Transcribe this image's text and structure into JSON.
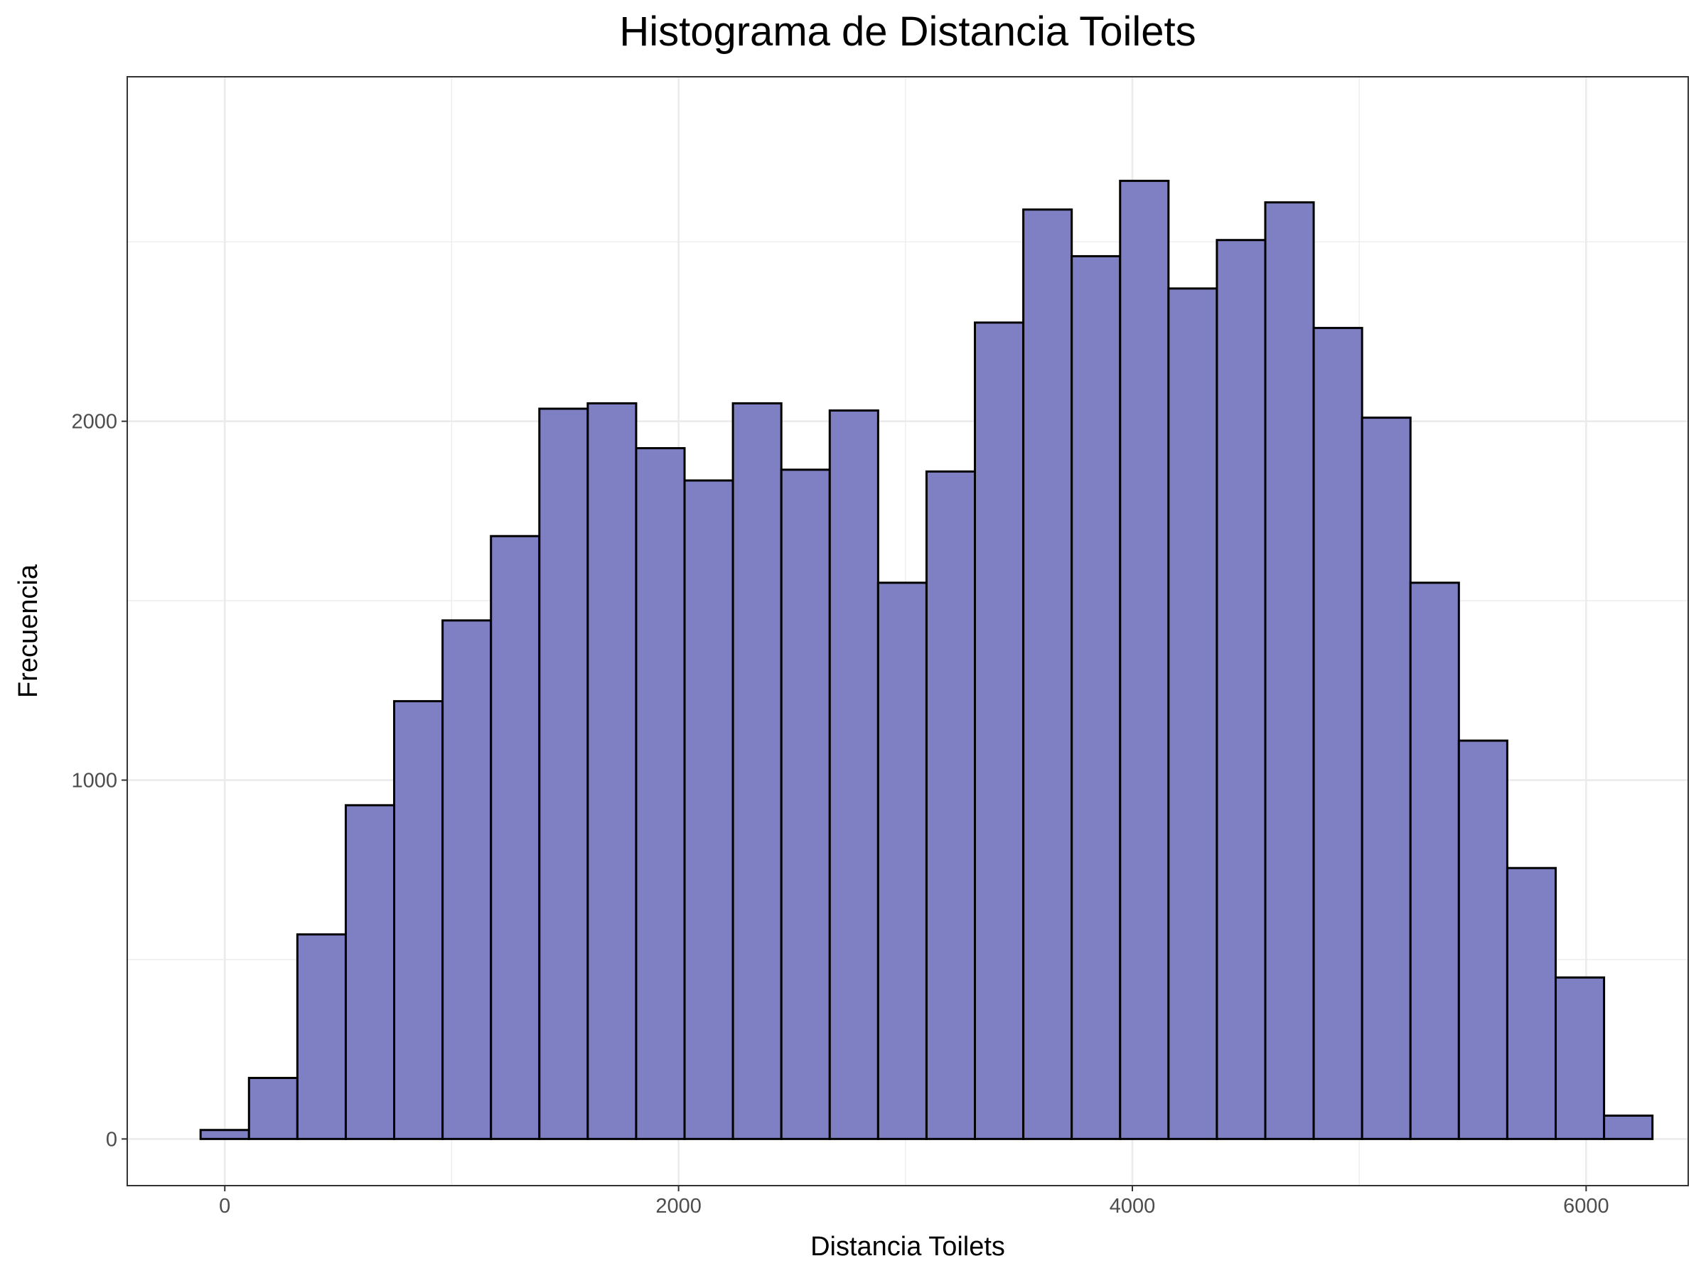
{
  "chart_data": {
    "type": "bar",
    "subtype": "histogram",
    "title": "Histograma de Distancia Toilets",
    "xlabel": "Distancia Toilets",
    "ylabel": "Frecuencia",
    "xlim": [
      -430,
      6450
    ],
    "ylim": [
      -130,
      2960
    ],
    "x_ticks": [
      0,
      2000,
      4000,
      6000
    ],
    "y_ticks": [
      0,
      1000,
      2000
    ],
    "grid": true,
    "legend": "none",
    "fill_color": "#7f7fc4",
    "border_color": "#000000",
    "bin_width": 213.3,
    "bin_start": -106.7,
    "bins": [
      {
        "x0": -106.7,
        "x1": 106.6,
        "count": 25
      },
      {
        "x0": 106.6,
        "x1": 319.9,
        "count": 170
      },
      {
        "x0": 319.9,
        "x1": 533.2,
        "count": 570
      },
      {
        "x0": 533.2,
        "x1": 746.5,
        "count": 930
      },
      {
        "x0": 746.5,
        "x1": 959.8,
        "count": 1220
      },
      {
        "x0": 959.8,
        "x1": 1173.1,
        "count": 1445
      },
      {
        "x0": 1173.1,
        "x1": 1386.4,
        "count": 1680
      },
      {
        "x0": 1386.4,
        "x1": 1599.7,
        "count": 2035
      },
      {
        "x0": 1599.7,
        "x1": 1813.0,
        "count": 2050
      },
      {
        "x0": 1813.0,
        "x1": 2026.3,
        "count": 1925
      },
      {
        "x0": 2026.3,
        "x1": 2239.6,
        "count": 1835
      },
      {
        "x0": 2239.6,
        "x1": 2452.9,
        "count": 2050
      },
      {
        "x0": 2452.9,
        "x1": 2666.2,
        "count": 1865
      },
      {
        "x0": 2666.2,
        "x1": 2879.5,
        "count": 2030
      },
      {
        "x0": 2879.5,
        "x1": 3092.8,
        "count": 1550
      },
      {
        "x0": 3092.8,
        "x1": 3306.1,
        "count": 1860
      },
      {
        "x0": 3306.1,
        "x1": 3519.4,
        "count": 2275
      },
      {
        "x0": 3519.4,
        "x1": 3732.7,
        "count": 2590
      },
      {
        "x0": 3732.7,
        "x1": 3946.0,
        "count": 2460
      },
      {
        "x0": 3946.0,
        "x1": 4159.3,
        "count": 2670
      },
      {
        "x0": 4159.3,
        "x1": 4372.6,
        "count": 2370
      },
      {
        "x0": 4372.6,
        "x1": 4585.9,
        "count": 2505
      },
      {
        "x0": 4585.9,
        "x1": 4799.2,
        "count": 2610
      },
      {
        "x0": 4799.2,
        "x1": 5012.5,
        "count": 2260
      },
      {
        "x0": 5012.5,
        "x1": 5225.8,
        "count": 2010
      },
      {
        "x0": 5225.8,
        "x1": 5439.1,
        "count": 1550
      },
      {
        "x0": 5439.1,
        "x1": 5652.4,
        "count": 1110
      },
      {
        "x0": 5652.4,
        "x1": 5865.7,
        "count": 755
      },
      {
        "x0": 5865.7,
        "x1": 6079.0,
        "count": 450
      },
      {
        "x0": 6079.0,
        "x1": 6292.3,
        "count": 65
      }
    ]
  }
}
